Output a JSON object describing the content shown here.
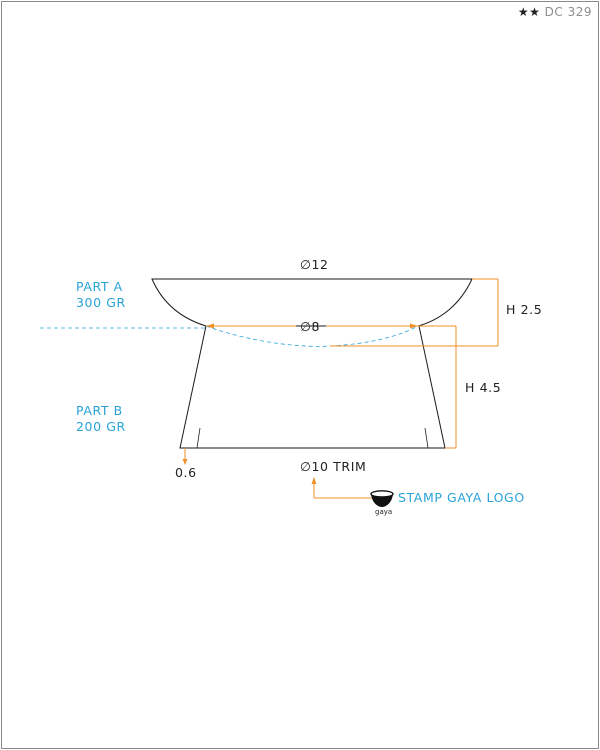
{
  "header": {
    "rating_icon": "two-stars-icon",
    "rating": "★★",
    "code": "DC 329"
  },
  "parts": [
    {
      "name": "PART A",
      "weight": "300 GR"
    },
    {
      "name": "PART B",
      "weight": "200 GR"
    }
  ],
  "dimensions": {
    "top_diameter": "∅12",
    "mid_diameter": "∅8",
    "bottom_diameter": "∅10 TRIM",
    "height_a": "H 2.5",
    "height_b": "H 4.5",
    "wall_thickness": "0.6"
  },
  "stamp": {
    "label": "STAMP GAYA LOGO",
    "logo_text": "gaya",
    "icon": "gaya-logo-icon"
  },
  "colors": {
    "outline": "#1a1a1a",
    "dimension": "#f0902a",
    "annotation": "#2aa3d8",
    "frame": "#8a8a8a"
  }
}
